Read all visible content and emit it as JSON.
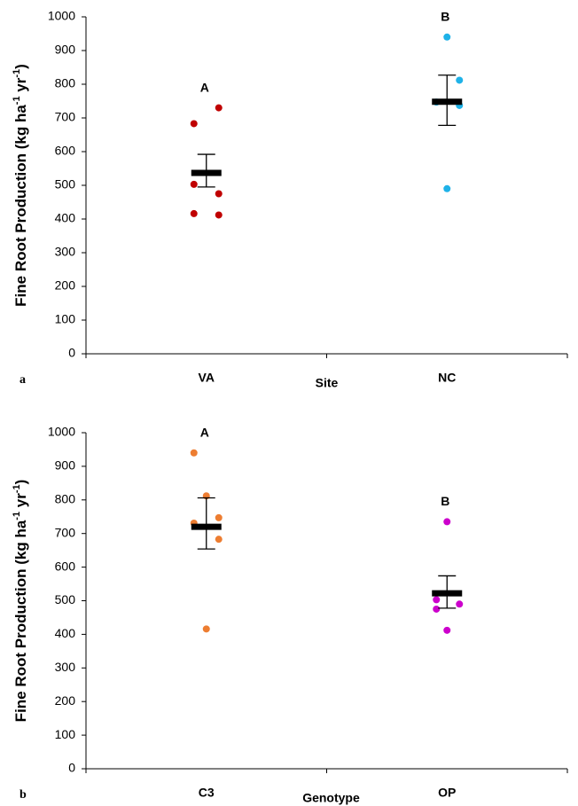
{
  "chart_data": [
    {
      "type": "dot",
      "panel": "a",
      "ylabel_parts": [
        "Fine Root Production (kg ha",
        "-1",
        " yr",
        "-1",
        ")"
      ],
      "xlabel": "Site",
      "ylim": [
        0,
        1000
      ],
      "yticks": [
        0,
        100,
        200,
        300,
        400,
        500,
        600,
        700,
        800,
        900,
        1000
      ],
      "groups": [
        {
          "category": "VA",
          "color": "#c00000",
          "values": [
            683,
            730,
            503,
            475,
            416,
            412
          ],
          "mean": 537,
          "error_low": 495,
          "error_high": 592,
          "letter": "A"
        },
        {
          "category": "NC",
          "color": "#1fb2e8",
          "values": [
            940,
            812,
            747,
            737,
            490
          ],
          "mean": 748,
          "error_low": 678,
          "error_high": 827,
          "letter": "B"
        }
      ]
    },
    {
      "type": "dot",
      "panel": "b",
      "ylabel_parts": [
        "Fine Root Production (kg ha",
        "-1",
        " yr",
        "-1",
        ")"
      ],
      "xlabel": "Genotype",
      "ylim": [
        0,
        1000
      ],
      "yticks": [
        0,
        100,
        200,
        300,
        400,
        500,
        600,
        700,
        800,
        900,
        1000
      ],
      "groups": [
        {
          "category": "C3",
          "color": "#ed7d31",
          "values": [
            940,
            812,
            731,
            747,
            683,
            416
          ],
          "mean": 720,
          "error_low": 654,
          "error_high": 806,
          "letter": "A"
        },
        {
          "category": "OP",
          "color": "#cc00cc",
          "values": [
            735,
            503,
            490,
            475,
            412
          ],
          "mean": 522,
          "error_low": 478,
          "error_high": 574,
          "letter": "B"
        }
      ]
    }
  ]
}
